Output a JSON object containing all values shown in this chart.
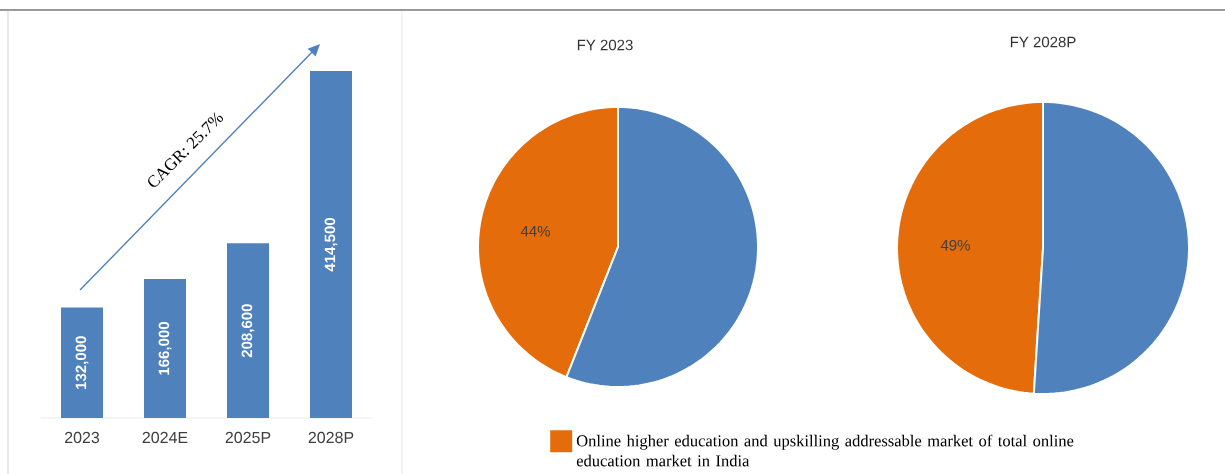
{
  "chart_data": [
    {
      "type": "bar",
      "categories": [
        "2023",
        "2024E",
        "2025P",
        "2028P"
      ],
      "values": [
        132000,
        166000,
        208600,
        414500
      ],
      "value_labels": [
        "132,000",
        "166,000",
        "208,600",
        "414,500"
      ],
      "color": "#4f81bd",
      "annotations": [
        "CAGR: 25.7%"
      ]
    },
    {
      "type": "pie",
      "title": "FY 2023",
      "categories": [
        null,
        null
      ],
      "values": [
        44,
        56
      ],
      "value_labels": [
        "44%",
        null
      ],
      "colors": [
        "#e46c0a",
        "#4f81bd"
      ]
    },
    {
      "type": "pie",
      "title": "FY 2028P",
      "categories": [
        "Online higher education and upskilling addressable market of total online education market in India",
        null
      ],
      "values": [
        49,
        51
      ],
      "value_labels": [
        "49%",
        null
      ],
      "colors": [
        "#e46c0a",
        "#4f81bd"
      ],
      "legend": "bottom"
    }
  ]
}
